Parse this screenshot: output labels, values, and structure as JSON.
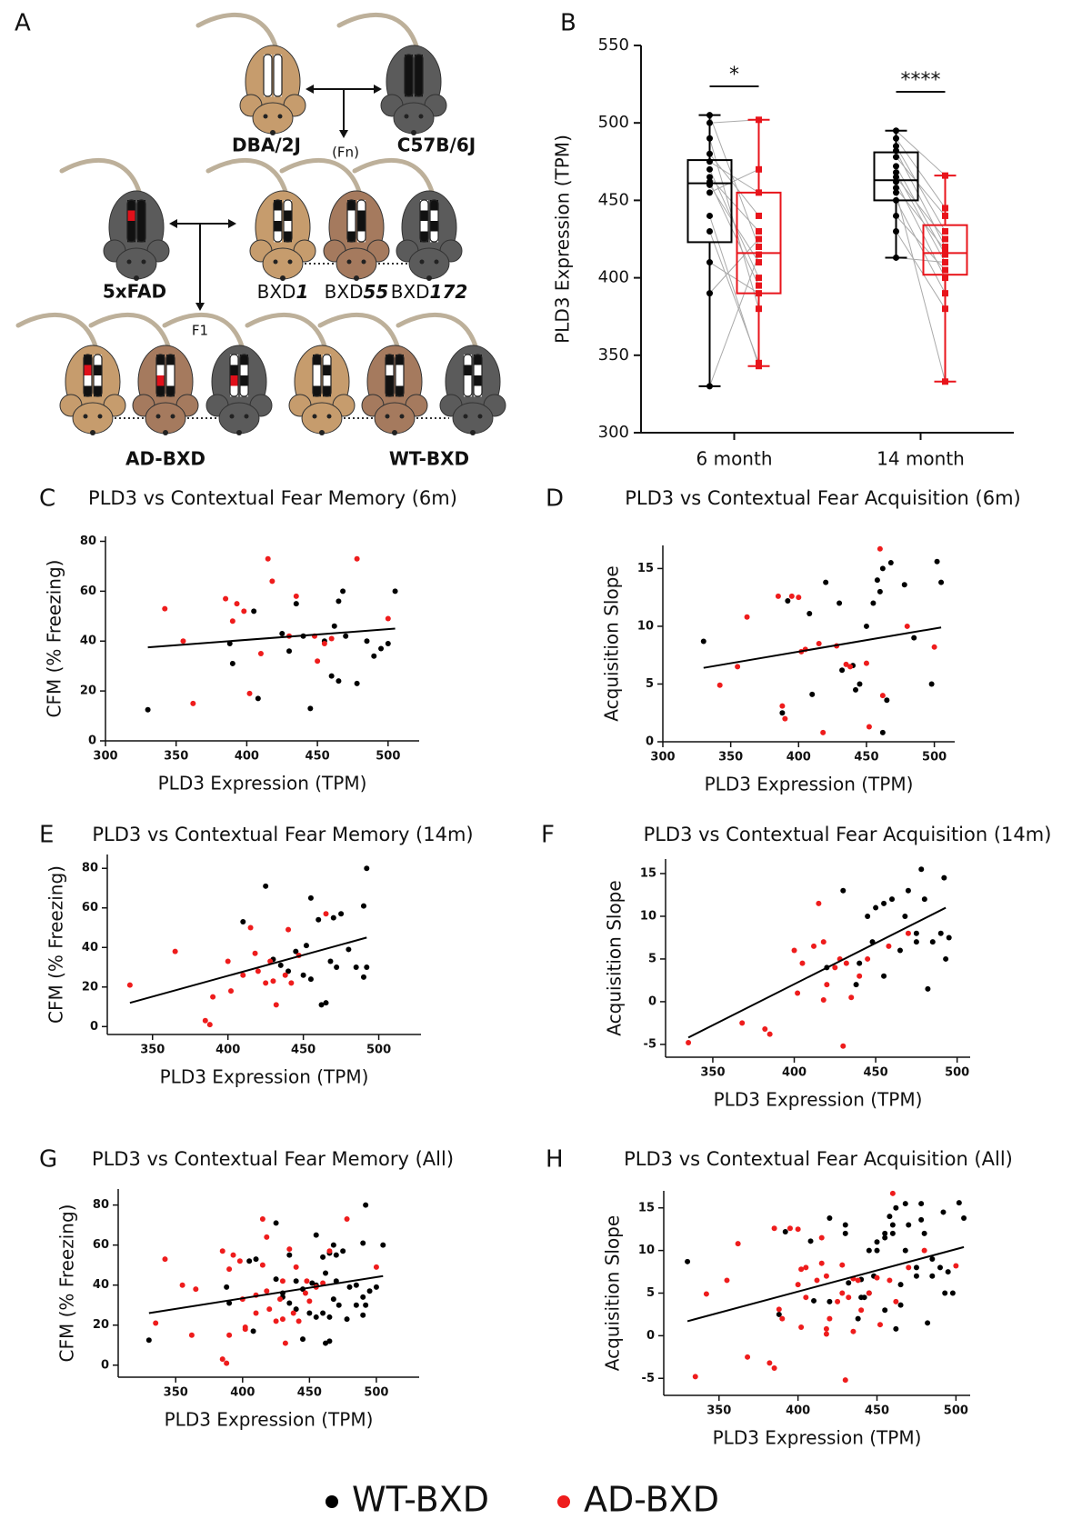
{
  "diagram": {
    "panel": "A",
    "parents": [
      "DBA/2J",
      "C57B/6J"
    ],
    "cross": "(Fn)",
    "donor": "5xFAD",
    "strains": [
      {
        "prefix": "BXD",
        "number": "1"
      },
      {
        "prefix": "BXD",
        "number": "55"
      },
      {
        "prefix": "BXD",
        "number": "172"
      }
    ],
    "cross2": "F1",
    "groups": [
      "AD-BXD",
      "WT-BXD"
    ]
  },
  "chart_data": [
    {
      "type": "box",
      "panel": "B",
      "ylabel": "PLD3 Expression  (TPM)",
      "categories": [
        "6 month",
        "14 month"
      ],
      "ylim": [
        300,
        550
      ],
      "yticks": [
        300,
        350,
        400,
        450,
        500,
        550
      ],
      "pair_color": "#aaaaaa",
      "annotations": [
        "*",
        "****"
      ],
      "series": [
        {
          "color": "#000000",
          "marker": "circle",
          "stats": [
            {
              "min": 330,
              "q1": 423,
              "median": 461,
              "q3": 476,
              "max": 505
            },
            {
              "min": 413,
              "q1": 450,
              "median": 463,
              "q3": 481,
              "max": 495
            }
          ],
          "values": [
            [
              505,
              500,
              490,
              480,
              475,
              470,
              465,
              462,
              460,
              455,
              440,
              430,
              410,
              390,
              330
            ],
            [
              495,
              490,
              485,
              482,
              478,
              472,
              468,
              465,
              462,
              458,
              455,
              450,
              440,
              430,
              413
            ]
          ]
        },
        {
          "color": "#e8141b",
          "marker": "square",
          "stats": [
            {
              "min": 343,
              "q1": 390,
              "median": 416,
              "q3": 455,
              "max": 502
            },
            {
              "min": 333,
              "q1": 402,
              "median": 416,
              "q3": 434,
              "max": 466
            }
          ],
          "values": [
            [
              420,
              502,
              380,
              440,
              455,
              400,
              430,
              395,
              410,
              470,
              343,
              345,
              390,
              425,
              415
            ],
            [
              466,
              445,
              430,
              420,
              440,
              415,
              410,
              425,
              400,
              418,
              333,
              390,
              405,
              380,
              410
            ]
          ]
        }
      ]
    },
    {
      "type": "scatter",
      "panel": "C",
      "title": "PLD3 vs Contextual Fear Memory (6m)",
      "xlabel": "PLD3 Expression (TPM)",
      "ylabel": "CFM (% Freezing)",
      "xlim": [
        300,
        522
      ],
      "ylim": [
        0,
        82
      ],
      "xticks": [
        300,
        350,
        400,
        450,
        500
      ],
      "yticks": [
        0,
        20,
        40,
        60,
        80
      ],
      "series": [
        {
          "color": "#000000",
          "x": [
            330,
            388,
            390,
            405,
            408,
            425,
            430,
            435,
            440,
            445,
            455,
            460,
            462,
            465,
            468,
            470,
            478,
            485,
            490,
            495,
            500,
            505,
            465
          ],
          "y": [
            12.5,
            39,
            31,
            52,
            17,
            43,
            36,
            55,
            42,
            13,
            40,
            26,
            46,
            56,
            60,
            42,
            23,
            40,
            34,
            37,
            39,
            60,
            24
          ]
        },
        {
          "color": "#ee1c1c",
          "x": [
            342,
            355,
            362,
            385,
            390,
            393,
            398,
            402,
            410,
            415,
            418,
            430,
            435,
            448,
            450,
            455,
            460,
            478,
            500
          ],
          "y": [
            53,
            40,
            15,
            57,
            48,
            55,
            52,
            19,
            35,
            73,
            64,
            42,
            58,
            42,
            32,
            39,
            41,
            73,
            49
          ]
        }
      ],
      "fit": {
        "color": "#000000",
        "x": [
          330,
          505
        ],
        "y": [
          37.5,
          45
        ]
      }
    },
    {
      "type": "scatter",
      "panel": "D",
      "title": "PLD3 vs Contextual Fear Acquisition (6m)",
      "xlabel": "PLD3 Expression (TPM)",
      "ylabel": "Acquisition Slope",
      "xlim": [
        300,
        515
      ],
      "ylim": [
        0,
        17
      ],
      "xticks": [
        300,
        350,
        400,
        450,
        500
      ],
      "yticks": [
        0,
        5,
        10,
        15
      ],
      "series": [
        {
          "color": "#000000",
          "x": [
            330,
            388,
            392,
            408,
            410,
            420,
            430,
            432,
            440,
            442,
            445,
            450,
            455,
            458,
            460,
            462,
            465,
            468,
            478,
            485,
            498,
            502,
            505,
            462
          ],
          "y": [
            8.7,
            2.5,
            12.2,
            11.1,
            4.1,
            13.8,
            12,
            6.2,
            6.6,
            4.5,
            5,
            10,
            12,
            14,
            13,
            15,
            3.6,
            15.5,
            13.6,
            9,
            5,
            15.6,
            13.8,
            0.8
          ]
        },
        {
          "color": "#ee1c1c",
          "x": [
            342,
            355,
            362,
            385,
            388,
            390,
            395,
            400,
            402,
            405,
            415,
            418,
            428,
            435,
            438,
            450,
            452,
            460,
            462,
            480,
            500
          ],
          "y": [
            4.9,
            6.5,
            10.8,
            12.6,
            3.1,
            2,
            12.6,
            12.5,
            7.8,
            8,
            8.5,
            0.8,
            8.3,
            6.7,
            6.5,
            6.8,
            1.3,
            16.7,
            4,
            10,
            8.2
          ]
        }
      ],
      "fit": {
        "color": "#000000",
        "x": [
          330,
          505
        ],
        "y": [
          6.4,
          9.9
        ]
      }
    },
    {
      "type": "scatter",
      "panel": "E",
      "title": "PLD3 vs Contextual Fear Memory (14m)",
      "xlabel": "PLD3 Expression (TPM)",
      "ylabel": "CFM (% Freezing)",
      "xlim": [
        320,
        528
      ],
      "ylim": [
        -4,
        87
      ],
      "xticks": [
        350,
        400,
        450,
        500
      ],
      "yticks": [
        0,
        20,
        40,
        60,
        80
      ],
      "series": [
        {
          "color": "#000000",
          "x": [
            410,
            425,
            430,
            435,
            440,
            445,
            450,
            452,
            455,
            455,
            460,
            462,
            465,
            468,
            470,
            472,
            475,
            480,
            485,
            490,
            492,
            490,
            492
          ],
          "y": [
            53,
            71,
            34,
            31,
            28,
            38,
            26,
            41,
            65,
            24,
            54,
            11,
            12,
            33,
            55,
            30,
            57,
            39,
            30,
            61,
            80,
            25,
            30
          ]
        },
        {
          "color": "#ee1c1c",
          "x": [
            335,
            365,
            385,
            388,
            390,
            400,
            402,
            410,
            415,
            418,
            420,
            425,
            428,
            430,
            432,
            438,
            440,
            442,
            447,
            465
          ],
          "y": [
            21,
            38,
            3,
            1,
            15,
            33,
            18,
            26,
            50,
            37,
            28,
            22,
            33,
            23,
            11,
            26,
            49,
            22,
            36,
            57
          ]
        }
      ],
      "fit": {
        "color": "#000000",
        "x": [
          335,
          492
        ],
        "y": [
          12,
          45
        ]
      }
    },
    {
      "type": "scatter",
      "panel": "F",
      "title": "PLD3 vs Contextual Fear Acquisition (14m)",
      "xlabel": "PLD3 Expression (TPM)",
      "ylabel": "Acquisition Slope",
      "xlim": [
        321,
        508
      ],
      "ylim": [
        -6.5,
        16.7
      ],
      "xticks": [
        350,
        400,
        450,
        500
      ],
      "yticks": [
        -5,
        0,
        5,
        10,
        15
      ],
      "series": [
        {
          "color": "#000000",
          "x": [
            420,
            430,
            438,
            440,
            445,
            448,
            450,
            455,
            455,
            460,
            465,
            468,
            470,
            475,
            478,
            480,
            482,
            485,
            490,
            492,
            493,
            495,
            475
          ],
          "y": [
            4,
            13,
            2,
            4.5,
            10,
            7,
            11,
            11.5,
            3,
            12,
            6,
            10,
            13,
            8,
            15.5,
            12,
            1.5,
            7,
            8,
            14.5,
            5,
            7.5,
            7
          ]
        },
        {
          "color": "#ee1c1c",
          "x": [
            335,
            368,
            382,
            385,
            400,
            402,
            405,
            412,
            415,
            418,
            420,
            425,
            428,
            430,
            432,
            435,
            440,
            445,
            458,
            470,
            418
          ],
          "y": [
            -4.8,
            -2.5,
            -3.2,
            -3.8,
            6,
            1,
            4.5,
            6.5,
            11.5,
            7,
            2,
            4,
            5,
            -5.2,
            4.5,
            0.5,
            3,
            5,
            6.5,
            8,
            0.2
          ]
        }
      ],
      "fit": {
        "color": "#000000",
        "x": [
          335,
          493
        ],
        "y": [
          -4.2,
          11
        ]
      }
    },
    {
      "type": "scatter",
      "panel": "G",
      "title": "PLD3 vs Contextual Fear Memory (All)",
      "xlabel": "PLD3 Expression (TPM)",
      "ylabel": "CFM (% Freezing)",
      "xlim": [
        307,
        532
      ],
      "ylim": [
        -6,
        88
      ],
      "xticks": [
        350,
        400,
        450,
        500
      ],
      "yticks": [
        0,
        20,
        40,
        60,
        80
      ],
      "series": [
        {
          "color": "#000000",
          "x": [
            330,
            388,
            390,
            405,
            408,
            425,
            430,
            435,
            440,
            445,
            455,
            460,
            462,
            465,
            468,
            470,
            478,
            485,
            490,
            495,
            500,
            505,
            465,
            410,
            425,
            430,
            435,
            440,
            445,
            450,
            452,
            455,
            455,
            460,
            462,
            465,
            468,
            470,
            472,
            475,
            480,
            485,
            490,
            492,
            490,
            492
          ],
          "y": [
            12.5,
            39,
            31,
            52,
            17,
            43,
            36,
            55,
            42,
            13,
            40,
            26,
            46,
            56,
            60,
            42,
            23,
            40,
            34,
            37,
            39,
            60,
            24,
            53,
            71,
            34,
            31,
            28,
            38,
            26,
            41,
            65,
            24,
            54,
            11,
            12,
            33,
            55,
            30,
            57,
            39,
            30,
            61,
            80,
            25,
            30
          ]
        },
        {
          "color": "#ee1c1c",
          "x": [
            342,
            355,
            362,
            385,
            390,
            393,
            398,
            402,
            410,
            415,
            418,
            430,
            435,
            448,
            450,
            455,
            460,
            478,
            500,
            335,
            365,
            385,
            388,
            390,
            400,
            402,
            410,
            415,
            418,
            420,
            425,
            428,
            430,
            432,
            438,
            440,
            442,
            447,
            465
          ],
          "y": [
            53,
            40,
            15,
            57,
            48,
            55,
            52,
            19,
            35,
            73,
            64,
            42,
            58,
            42,
            32,
            39,
            41,
            73,
            49,
            21,
            38,
            3,
            1,
            15,
            33,
            18,
            26,
            50,
            37,
            28,
            22,
            33,
            23,
            11,
            26,
            49,
            22,
            36,
            57
          ]
        }
      ],
      "fit": {
        "color": "#000000",
        "x": [
          330,
          505
        ],
        "y": [
          26,
          44.5
        ]
      }
    },
    {
      "type": "scatter",
      "panel": "H",
      "title": "PLD3 vs Contextual Fear Acquisition (All)",
      "xlabel": "PLD3 Expression (TPM)",
      "ylabel": "Acquisition Slope",
      "xlim": [
        315,
        509
      ],
      "ylim": [
        -7,
        17
      ],
      "xticks": [
        350,
        400,
        450,
        500
      ],
      "yticks": [
        -5,
        0,
        5,
        10,
        15
      ],
      "series": [
        {
          "color": "#000000",
          "x": [
            330,
            388,
            392,
            408,
            410,
            420,
            430,
            432,
            440,
            442,
            445,
            450,
            455,
            458,
            460,
            462,
            465,
            468,
            478,
            485,
            498,
            502,
            505,
            462,
            420,
            430,
            438,
            440,
            445,
            448,
            450,
            455,
            455,
            460,
            465,
            468,
            470,
            475,
            478,
            480,
            482,
            485,
            490,
            492,
            493,
            495,
            475
          ],
          "y": [
            8.7,
            2.5,
            12.2,
            11.1,
            4.1,
            13.8,
            12,
            6.2,
            6.6,
            4.5,
            5,
            10,
            12,
            14,
            13,
            15,
            3.6,
            15.5,
            13.6,
            9,
            5,
            15.6,
            13.8,
            0.8,
            4,
            13,
            2,
            4.5,
            10,
            7,
            11,
            11.5,
            3,
            12,
            6,
            10,
            13,
            8,
            15.5,
            12,
            1.5,
            7,
            8,
            14.5,
            5,
            7.5,
            7
          ]
        },
        {
          "color": "#ee1c1c",
          "x": [
            342,
            355,
            362,
            385,
            388,
            390,
            395,
            400,
            402,
            405,
            415,
            418,
            428,
            435,
            438,
            450,
            452,
            460,
            462,
            480,
            500,
            335,
            368,
            382,
            385,
            400,
            402,
            405,
            412,
            415,
            418,
            420,
            425,
            428,
            430,
            432,
            435,
            440,
            445,
            458,
            470,
            418
          ],
          "y": [
            4.9,
            6.5,
            10.8,
            12.6,
            3.1,
            2,
            12.6,
            12.5,
            7.8,
            8,
            8.5,
            0.8,
            8.3,
            6.7,
            6.5,
            6.8,
            1.3,
            16.7,
            4,
            10,
            8.2,
            -4.8,
            -2.5,
            -3.2,
            -3.8,
            6,
            1,
            4.5,
            6.5,
            11.5,
            7,
            2,
            4,
            5,
            -5.2,
            4.5,
            0.5,
            3,
            5,
            6.5,
            8,
            0.2
          ]
        }
      ],
      "fit": {
        "color": "#000000",
        "x": [
          330,
          505
        ],
        "y": [
          1.7,
          10.4
        ]
      }
    }
  ],
  "legend": [
    {
      "name": "WT-BXD",
      "color": "#000000"
    },
    {
      "name": "AD-BXD",
      "color": "#ee1c1c"
    }
  ]
}
